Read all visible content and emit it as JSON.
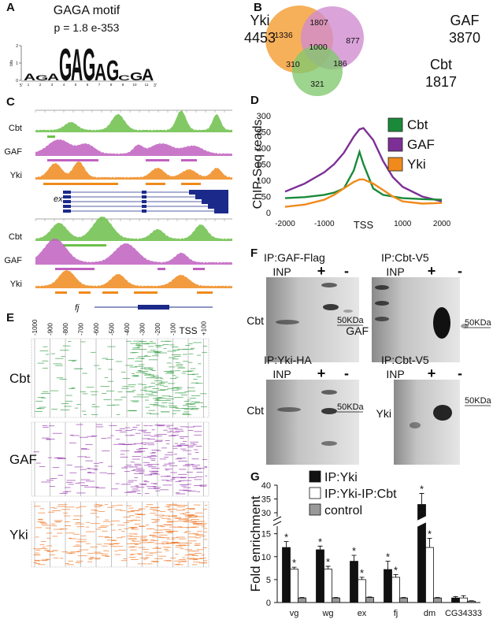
{
  "panel_labels": [
    "A",
    "B",
    "C",
    "D",
    "E",
    "F",
    "G"
  ],
  "motif": {
    "title": "GAGA motif",
    "pvalue": "p = 1.8 e-353",
    "y_label": "bits",
    "yticks": [
      0,
      1,
      2
    ],
    "letters": [
      "A",
      "G",
      "A",
      "G",
      "A",
      "G",
      "A",
      "G",
      "C",
      "G",
      "A"
    ],
    "heights": [
      0.4,
      0.3,
      0.4,
      1.9,
      1.9,
      1.9,
      1.0,
      1.2,
      0.3,
      0.5,
      0.7
    ],
    "positions": [
      1,
      2,
      3,
      4,
      5,
      6,
      7,
      8,
      9,
      10,
      11
    ],
    "ends": [
      "5'",
      "3'"
    ]
  },
  "venn": {
    "sets": [
      {
        "name": "Yki",
        "total": 4453,
        "color": "#f39a2b"
      },
      {
        "name": "GAF",
        "total": 3870,
        "color": "#cf8ad0"
      },
      {
        "name": "Cbt",
        "total": 1817,
        "color": "#82c86e"
      }
    ],
    "regions": [
      1336,
      1807,
      877,
      1000,
      310,
      186,
      321
    ]
  },
  "tracks": [
    {
      "labels": [
        "Cbt",
        "GAF",
        "Yki"
      ],
      "gene": "ex"
    },
    {
      "labels": [
        "Cbt",
        "GAF",
        "Yki"
      ],
      "gene": "fj"
    }
  ],
  "chart_data": [
    {
      "type": "line",
      "y_label": "ChIP-Seq reads",
      "x": [
        -2000,
        -1500,
        -1000,
        -750,
        -500,
        -250,
        -100,
        0,
        250,
        500,
        750,
        1000,
        1500,
        2000
      ],
      "xlim": [
        -2080,
        2080
      ],
      "xticks": [
        -2000,
        -1000,
        {
          "value": 0,
          "label": "TSS"
        },
        1000,
        2000
      ],
      "ylim": [
        0,
        300
      ],
      "yticks": [
        0,
        50,
        100,
        150,
        200,
        250,
        300
      ],
      "legend": "top-right",
      "series": [
        {
          "name": "Cbt",
          "color": "#1a8a3a",
          "values": [
            45,
            48,
            55,
            62,
            75,
            130,
            188,
            150,
            75,
            55,
            50,
            45,
            42,
            40
          ]
        },
        {
          "name": "GAF",
          "color": "#7d2f96",
          "values": [
            65,
            90,
            125,
            150,
            185,
            235,
            258,
            262,
            225,
            160,
            110,
            80,
            50,
            35
          ]
        },
        {
          "name": "Yki",
          "color": "#f08a1c",
          "values": [
            18,
            25,
            40,
            55,
            75,
            95,
            103,
            103,
            90,
            70,
            50,
            35,
            28,
            30
          ]
        }
      ]
    },
    {
      "type": "bar",
      "y_label": "Fold enrichment",
      "categories": [
        "vg",
        "wg",
        "ex",
        "fj",
        "dm",
        "CG34333"
      ],
      "ylim": [
        0,
        40
      ],
      "axis_break": [
        17,
        28
      ],
      "yticks": [
        0,
        5,
        10,
        15,
        30,
        35,
        40
      ],
      "legend": "top-left",
      "series": [
        {
          "name": "IP:Yki",
          "color": "#111111",
          "values": [
            12,
            11.5,
            9,
            7.2,
            33,
            1.0
          ],
          "errors": [
            1.3,
            0.8,
            1.3,
            1.8,
            4,
            0.3
          ],
          "annotations": [
            "*",
            "*",
            "*",
            "*",
            "*",
            null
          ]
        },
        {
          "name": "IP:Yki-IP:Cbt",
          "color": "#ffffff",
          "values": [
            7.3,
            7.3,
            5,
            5.5,
            12,
            1.0
          ],
          "errors": [
            0.4,
            0.6,
            0.5,
            0.6,
            2,
            0.5
          ],
          "annotations": [
            "*",
            "*",
            "*",
            "*",
            "*",
            null
          ]
        },
        {
          "name": "control",
          "color": "#999999",
          "values": [
            1.0,
            1.0,
            1.1,
            1.0,
            1.0,
            0.3
          ],
          "errors": [
            0.1,
            0.1,
            0.1,
            0.1,
            0.1,
            0.1
          ],
          "annotations": [
            null,
            null,
            null,
            null,
            null,
            null
          ]
        }
      ]
    }
  ],
  "motif_map": {
    "x_labels": [
      "-1000",
      "-900",
      "-800",
      "-700",
      "-600",
      "-500",
      "-400",
      "-300",
      "-200",
      "-100",
      "TSS",
      "+100"
    ],
    "rows": [
      {
        "name": "Cbt",
        "color": "#3aa14a"
      },
      {
        "name": "GAF",
        "color": "#9a3fb0"
      },
      {
        "name": "Yki",
        "color": "#f07a2a"
      }
    ]
  },
  "blots": [
    {
      "title": "IP:GAF-Flag",
      "lanes": [
        "INP",
        "+",
        "-"
      ],
      "label": "Cbt",
      "marker": "50KDa"
    },
    {
      "title": "IP:Cbt-V5",
      "lanes": [
        "INP",
        "+",
        "-"
      ],
      "label": "GAF",
      "marker": "50KDa"
    },
    {
      "title": "IP:Yki-HA",
      "lanes": [
        "INP",
        "+",
        "-"
      ],
      "label": "Cbt",
      "marker": "50KDa"
    },
    {
      "title": "IP:Cbt-V5",
      "lanes": [
        "INP",
        "+",
        "-"
      ],
      "label": "Yki",
      "marker": "50KDa"
    }
  ]
}
